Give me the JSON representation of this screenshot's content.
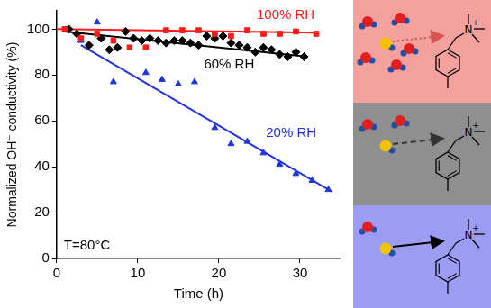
{
  "chart_data": {
    "type": "scatter",
    "x_label": "Time (h)",
    "y_label": "Normalized OH⁻ conductivity (%)",
    "annotation": "T=80°C",
    "xlim": [
      0,
      35
    ],
    "xticks": [
      0,
      10,
      20,
      30
    ],
    "ylim": [
      0,
      108
    ],
    "yticks": [
      0,
      20,
      40,
      60,
      80,
      100
    ],
    "grid": false,
    "series": [
      {
        "name": "100% RH",
        "color": "#ff1a1a",
        "marker": "square",
        "x": [
          1,
          3,
          5,
          7,
          9,
          11,
          13.5,
          15.5,
          17.5,
          19.5,
          21.5,
          23.5,
          25.5,
          27.5,
          29.5,
          32
        ],
        "values": [
          100,
          96,
          98,
          95,
          92,
          92,
          99.5,
          99.5,
          99.5,
          98,
          97,
          99.5,
          98,
          98,
          99,
          98
        ],
        "fit": {
          "x": [
            0,
            32
          ],
          "values": [
            100,
            98.5
          ]
        }
      },
      {
        "name": "60% RH",
        "color": "#000000",
        "marker": "diamond",
        "x": [
          1.5,
          2.5,
          4,
          5.5,
          6.5,
          7.5,
          8.5,
          9.5,
          10.5,
          11.5,
          12.5,
          13.5,
          14.5,
          15.5,
          16.5,
          17.5,
          18.5,
          19.5,
          20.5,
          21.5,
          22.5,
          23.5,
          24.5,
          25.5,
          26.5,
          27.5,
          28.5,
          29.5,
          30.5
        ],
        "values": [
          100,
          98,
          93,
          96,
          91,
          92,
          99,
          96,
          95,
          96,
          95,
          94,
          95,
          95,
          94,
          93,
          97,
          96,
          97,
          94,
          93,
          92,
          90,
          92,
          91,
          89,
          88,
          90,
          88
        ],
        "fit": {
          "x": [
            1,
            31
          ],
          "values": [
            99,
            88
          ]
        }
      },
      {
        "name": "20% RH",
        "color": "#2233dd",
        "marker": "triangle",
        "x": [
          3,
          5,
          7,
          11,
          13,
          15,
          17,
          19.5,
          21.5,
          23.5,
          25.5,
          27.5,
          29.5,
          31.5,
          33.5
        ],
        "values": [
          95,
          103,
          77,
          81,
          78,
          76,
          77,
          57,
          50,
          51,
          46,
          41,
          37,
          34,
          30
        ],
        "fit": {
          "x": [
            3,
            34
          ],
          "values": [
            93,
            29
          ]
        }
      }
    ]
  },
  "schematic": {
    "atom_label": "N",
    "charge": "+",
    "panels": [
      {
        "series": "100% RH",
        "color": "#f4a09c",
        "waters": 5,
        "line_style": "dotted"
      },
      {
        "series": "60% RH",
        "color": "#8f8f8f",
        "waters": 2,
        "line_style": "dashed"
      },
      {
        "series": "20% RH",
        "color": "#9c9cf2",
        "waters": 1,
        "line_style": "solid"
      }
    ]
  }
}
